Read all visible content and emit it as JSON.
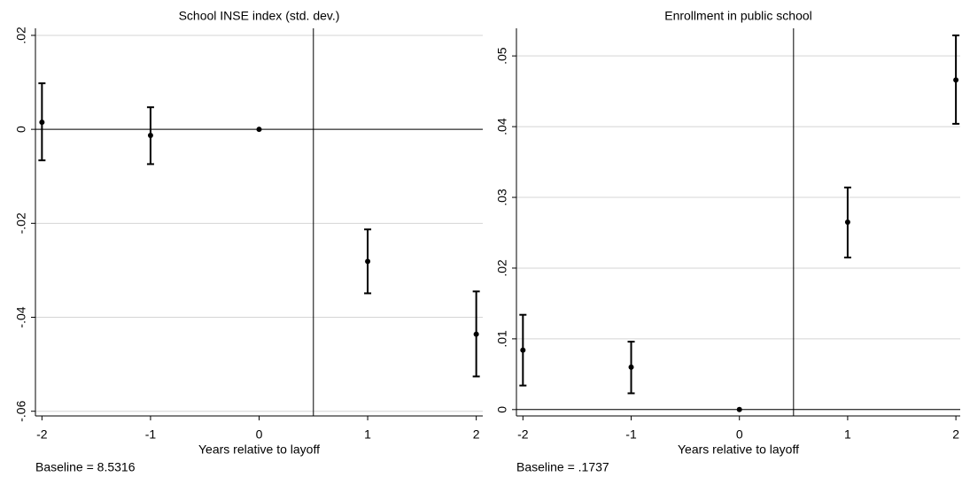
{
  "chart_data": [
    {
      "type": "errorbar",
      "title": "School INSE index (std. dev.)",
      "x_label": "Years relative to layoff",
      "note": "Baseline = 8.5316",
      "x": [
        -2,
        -1,
        0,
        1,
        2
      ],
      "series": [
        {
          "color": "#000000",
          "values": [
            0.0015,
            -0.0013,
            0,
            -0.0281,
            -0.0436
          ],
          "lower": [
            -0.0066,
            -0.0074,
            null,
            -0.0349,
            -0.0526
          ],
          "upper": [
            0.0098,
            0.0047,
            null,
            -0.0213,
            -0.0345
          ]
        }
      ],
      "xlim": [
        -2.06,
        2.06
      ],
      "ylim": [
        -0.061,
        0.0215
      ],
      "xticks": [
        -2,
        -1,
        0,
        1,
        2
      ],
      "yticks": [
        {
          "value": 0.02,
          "label": ".02"
        },
        0,
        {
          "value": -0.02,
          "label": "-.02"
        },
        {
          "value": -0.04,
          "label": "-.04"
        },
        {
          "value": -0.06,
          "label": "-.06"
        }
      ],
      "grid": true,
      "reference_lines": {
        "x": 0.5,
        "y": 0
      }
    },
    {
      "type": "errorbar",
      "title": "Enrollment in public school",
      "x_label": "Years relative to layoff",
      "note": "Baseline = .1737",
      "x": [
        -2,
        -1,
        0,
        1,
        2
      ],
      "series": [
        {
          "color": "#000000",
          "values": [
            0.0084,
            0.006,
            0,
            0.0265,
            0.0466
          ],
          "lower": [
            0.0034,
            0.0023,
            null,
            0.0215,
            0.0404
          ],
          "upper": [
            0.0134,
            0.0096,
            null,
            0.0314,
            0.0529
          ]
        }
      ],
      "xlim": [
        -2.06,
        2.04
      ],
      "ylim": [
        -0.0009,
        0.0539
      ],
      "xticks": [
        -2,
        -1,
        0,
        1,
        2
      ],
      "yticks": [
        0,
        {
          "value": 0.01,
          "label": ".01"
        },
        {
          "value": 0.02,
          "label": ".02"
        },
        {
          "value": 0.03,
          "label": ".03"
        },
        {
          "value": 0.04,
          "label": ".04"
        },
        {
          "value": 0.05,
          "label": ".05"
        }
      ],
      "grid": true,
      "reference_lines": {
        "x": 0.5,
        "y": 0
      }
    }
  ]
}
